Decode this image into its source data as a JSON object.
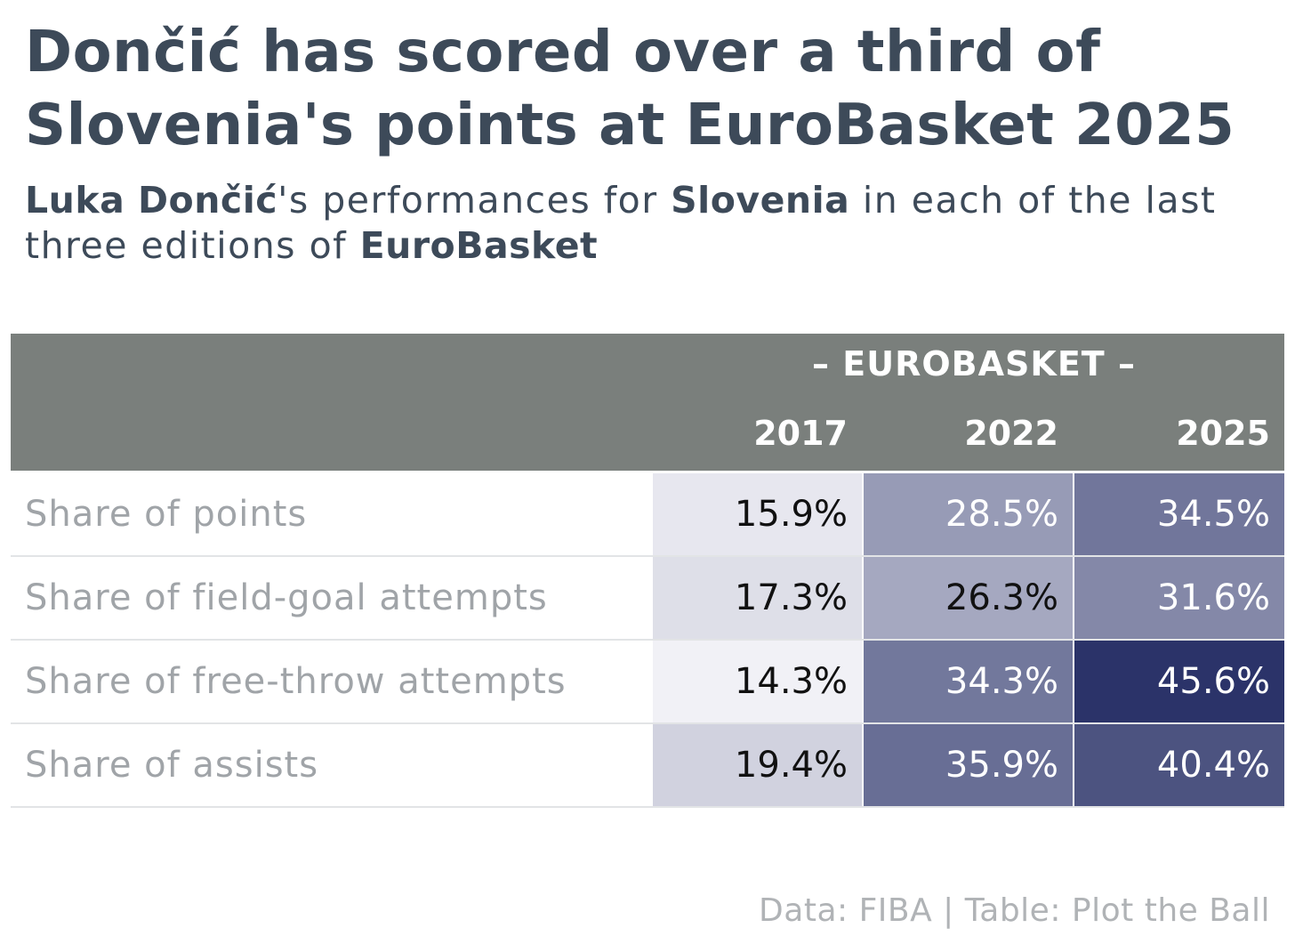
{
  "title": "Dončić has scored over a third of Slovenia's points at EuroBasket 2025",
  "subtitle": {
    "parts": [
      {
        "text": "Luka Dončić",
        "bold": true
      },
      {
        "text": "'s performances for ",
        "bold": false
      },
      {
        "text": "Slovenia",
        "bold": true
      },
      {
        "text": " in each of the last three editions of ",
        "bold": false
      },
      {
        "text": "EuroBasket",
        "bold": true
      }
    ]
  },
  "chart_data": {
    "type": "table",
    "spanner": "– EUROBASKET –",
    "columns": [
      "2017",
      "2022",
      "2025"
    ],
    "rows": [
      {
        "label": "Share of points",
        "values": [
          15.9,
          28.5,
          34.5
        ],
        "display": [
          "15.9%",
          "28.5%",
          "34.5%"
        ]
      },
      {
        "label": "Share of field-goal attempts",
        "values": [
          17.3,
          26.3,
          31.6
        ],
        "display": [
          "17.3%",
          "26.3%",
          "31.6%"
        ]
      },
      {
        "label": "Share of free-throw attempts",
        "values": [
          14.3,
          34.3,
          45.6
        ],
        "display": [
          "14.3%",
          "34.3%",
          "45.6%"
        ]
      },
      {
        "label": "Share of assists",
        "values": [
          19.4,
          35.9,
          40.4
        ],
        "display": [
          "19.4%",
          "35.9%",
          "40.4%"
        ]
      }
    ],
    "color_scale": {
      "low": "#f1f1f6",
      "high": "#2b3369",
      "domain": [
        14.3,
        45.6
      ]
    }
  },
  "source": "Data: FIBA | Table: Plot the Ball",
  "colors": {
    "header_bg": "#7a7f7c",
    "title": "#3d4a59",
    "row_label": "#a0a4a8",
    "dark_text": "#111111",
    "light_text": "#ffffff"
  }
}
